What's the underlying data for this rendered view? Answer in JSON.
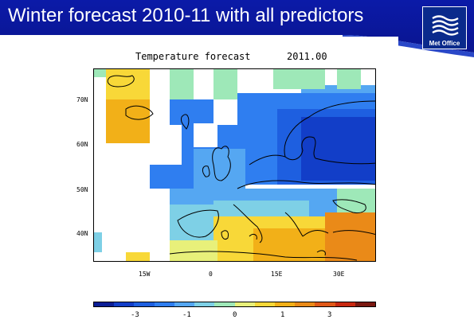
{
  "slide": {
    "title": "Winter forecast 2010-11 with all predictors",
    "logo_text": "Met Office",
    "logo_icon": "met-office-wave-icon"
  },
  "plot": {
    "title_left": "Temperature forecast",
    "title_right": "2011.00",
    "lat_labels": [
      "70N",
      "60N",
      "50N",
      "40N"
    ],
    "lon_labels": [
      "15W",
      "0",
      "15E",
      "30E"
    ]
  },
  "colorbar": {
    "colors": [
      "#0b1e96",
      "#123ec8",
      "#1e5fe0",
      "#2f7ef0",
      "#55a7f2",
      "#7ed0e6",
      "#9ee8b8",
      "#e8f07a",
      "#f8d838",
      "#f2b018",
      "#ea8a18",
      "#e05818",
      "#c82810",
      "#7a1810"
    ],
    "labels": [
      "-3",
      "-1",
      "0",
      "1",
      "3"
    ]
  },
  "colors": {
    "header_blue": "#0b1aa8",
    "header_stripe": "#2a48c8",
    "land_outline": "#000000"
  }
}
